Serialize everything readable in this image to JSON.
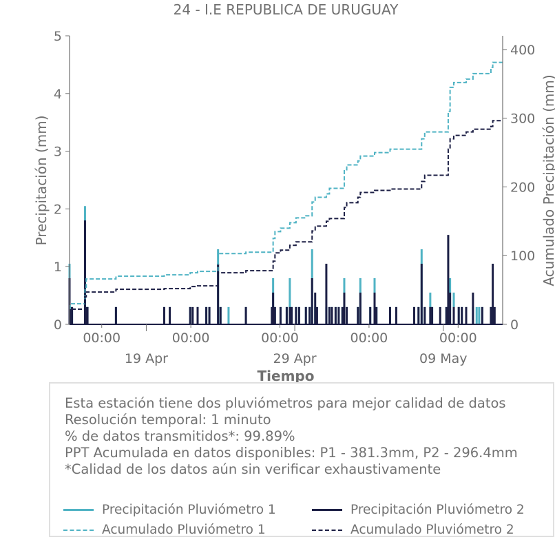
{
  "chart_data": {
    "type": "bar",
    "title": "24 - I.E REPUBLICA DE URUGUAY",
    "xlabel": "Tiempo",
    "ylabel": "Precipitación (mm)",
    "ylabel_right": "Acumulado Precipitación (mm)",
    "ylim": [
      0,
      5
    ],
    "ylim_right": [
      0,
      420
    ],
    "xlim": [
      "2025-04-13T20:00",
      "2025-05-13T00:00"
    ],
    "yticks": [
      "0",
      "1",
      "2",
      "3",
      "4",
      "5"
    ],
    "yticks_right": [
      "0",
      "100",
      "200",
      "300",
      "400"
    ],
    "xticks": [
      {
        "t": "2025-04-16T00:00",
        "label": "00:00"
      },
      {
        "t": "2025-04-22T00:00",
        "label": "00:00"
      },
      {
        "t": "2025-04-28T00:00",
        "label": "00:00"
      },
      {
        "t": "2025-05-04T00:00",
        "label": "00:00"
      },
      {
        "t": "2025-05-10T00:00",
        "label": "00:00"
      }
    ],
    "xticks_major": [
      {
        "t": "2025-04-19T00:00",
        "label": "19 Apr"
      },
      {
        "t": "2025-04-29T00:00",
        "label": "29 Apr"
      },
      {
        "t": "2025-05-09T00:00",
        "label": "09 May"
      }
    ],
    "grid": false,
    "colors": {
      "p1": "#4fb3c4",
      "p2": "#1c1f45",
      "axis": "#707070"
    },
    "series": [
      {
        "name": "Precipitación Pluviómetro 1",
        "kind": "bar",
        "points": [
          [
            "2025-04-13T20:00",
            1.05
          ],
          [
            "2025-04-13T21:00",
            0.3
          ],
          [
            "2025-04-14T00:00",
            0.3
          ],
          [
            "2025-04-14T21:00",
            2.05
          ],
          [
            "2025-04-14T22:00",
            0.3
          ],
          [
            "2025-04-15T01:00",
            0.3
          ],
          [
            "2025-04-16T23:00",
            0.3
          ],
          [
            "2025-04-20T05:00",
            0.3
          ],
          [
            "2025-04-20T14:00",
            0.3
          ],
          [
            "2025-04-21T23:00",
            0.3
          ],
          [
            "2025-04-22T11:00",
            0.3
          ],
          [
            "2025-04-23T01:00",
            0.3
          ],
          [
            "2025-04-23T06:00",
            0.3
          ],
          [
            "2025-04-23T20:00",
            1.3
          ],
          [
            "2025-04-24T00:00",
            0.3
          ],
          [
            "2025-04-24T13:00",
            0.3
          ],
          [
            "2025-04-25T17:00",
            0.3
          ],
          [
            "2025-04-27T11:00",
            0.3
          ],
          [
            "2025-04-27T13:00",
            0.8
          ],
          [
            "2025-04-27T16:00",
            0.3
          ],
          [
            "2025-04-28T01:00",
            0.3
          ],
          [
            "2025-04-28T11:00",
            0.3
          ],
          [
            "2025-04-28T16:00",
            0.8
          ],
          [
            "2025-04-28T19:00",
            0.3
          ],
          [
            "2025-04-29T02:00",
            0.3
          ],
          [
            "2025-04-29T07:00",
            0.3
          ],
          [
            "2025-04-29T18:00",
            0.3
          ],
          [
            "2025-04-30T00:00",
            0.3
          ],
          [
            "2025-04-30T04:00",
            1.3
          ],
          [
            "2025-04-30T09:00",
            0.3
          ],
          [
            "2025-05-01T03:00",
            0.3
          ],
          [
            "2025-05-01T08:00",
            0.3
          ],
          [
            "2025-05-01T12:00",
            0.3
          ],
          [
            "2025-05-01T18:00",
            0.3
          ],
          [
            "2025-05-01T23:00",
            0.3
          ],
          [
            "2025-05-02T05:00",
            0.3
          ],
          [
            "2025-05-02T08:00",
            0.8
          ],
          [
            "2025-05-02T12:00",
            0.3
          ],
          [
            "2025-05-03T06:00",
            0.3
          ],
          [
            "2025-05-03T10:00",
            0.8
          ],
          [
            "2025-05-04T02:00",
            0.3
          ],
          [
            "2025-05-04T09:00",
            0.8
          ],
          [
            "2025-05-04T12:00",
            0.3
          ],
          [
            "2025-05-05T10:00",
            0.3
          ],
          [
            "2025-05-05T20:00",
            0.3
          ],
          [
            "2025-05-07T01:00",
            0.3
          ],
          [
            "2025-05-07T08:00",
            0.3
          ],
          [
            "2025-05-07T13:00",
            1.3
          ],
          [
            "2025-05-07T18:00",
            0.3
          ],
          [
            "2025-05-08T03:00",
            0.55
          ],
          [
            "2025-05-08T06:00",
            0.3
          ],
          [
            "2025-05-09T05:00",
            0.3
          ],
          [
            "2025-05-09T11:00",
            0.8
          ],
          [
            "2025-05-09T17:00",
            0.55
          ],
          [
            "2025-05-10T01:00",
            0.3
          ],
          [
            "2025-05-10T06:00",
            0.3
          ],
          [
            "2025-05-10T13:00",
            0.3
          ],
          [
            "2025-05-11T00:00",
            0.3
          ],
          [
            "2025-05-11T06:00",
            0.3
          ],
          [
            "2025-05-11T10:00",
            0.3
          ],
          [
            "2025-05-11T15:00",
            0.3
          ],
          [
            "2025-05-12T05:00",
            0.3
          ]
        ]
      },
      {
        "name": "Precipitación Pluviómetro 2",
        "kind": "bar",
        "points": [
          [
            "2025-04-13T20:00",
            0.8
          ],
          [
            "2025-04-13T21:00",
            0.3
          ],
          [
            "2025-04-14T00:00",
            0.3
          ],
          [
            "2025-04-14T21:00",
            1.8
          ],
          [
            "2025-04-14T23:00",
            0.3
          ],
          [
            "2025-04-15T01:00",
            0.3
          ],
          [
            "2025-04-16T23:00",
            0.3
          ],
          [
            "2025-04-20T05:00",
            0.3
          ],
          [
            "2025-04-20T14:00",
            0.3
          ],
          [
            "2025-04-21T23:00",
            0.3
          ],
          [
            "2025-04-22T03:00",
            0.3
          ],
          [
            "2025-04-22T11:00",
            0.3
          ],
          [
            "2025-04-23T01:00",
            0.3
          ],
          [
            "2025-04-23T06:00",
            0.3
          ],
          [
            "2025-04-23T20:00",
            1.05
          ],
          [
            "2025-04-24T00:00",
            0.3
          ],
          [
            "2025-04-25T17:00",
            0.3
          ],
          [
            "2025-04-27T11:00",
            0.3
          ],
          [
            "2025-04-27T13:00",
            0.55
          ],
          [
            "2025-04-27T16:00",
            0.3
          ],
          [
            "2025-04-28T01:00",
            0.3
          ],
          [
            "2025-04-28T11:00",
            0.3
          ],
          [
            "2025-04-28T16:00",
            0.3
          ],
          [
            "2025-04-28T19:00",
            0.3
          ],
          [
            "2025-04-29T02:00",
            0.3
          ],
          [
            "2025-04-29T07:00",
            0.3
          ],
          [
            "2025-04-29T18:00",
            0.3
          ],
          [
            "2025-04-30T00:00",
            0.3
          ],
          [
            "2025-04-30T04:00",
            0.8
          ],
          [
            "2025-04-30T09:00",
            0.55
          ],
          [
            "2025-04-30T12:00",
            0.3
          ],
          [
            "2025-05-01T03:00",
            1.05
          ],
          [
            "2025-05-01T08:00",
            0.3
          ],
          [
            "2025-05-01T12:00",
            0.3
          ],
          [
            "2025-05-01T18:00",
            0.3
          ],
          [
            "2025-05-01T23:00",
            0.3
          ],
          [
            "2025-05-02T05:00",
            0.3
          ],
          [
            "2025-05-02T08:00",
            0.55
          ],
          [
            "2025-05-02T12:00",
            0.3
          ],
          [
            "2025-05-03T06:00",
            0.3
          ],
          [
            "2025-05-03T10:00",
            0.55
          ],
          [
            "2025-05-04T02:00",
            0.3
          ],
          [
            "2025-05-04T09:00",
            0.55
          ],
          [
            "2025-05-04T12:00",
            0.3
          ],
          [
            "2025-05-05T10:00",
            0.3
          ],
          [
            "2025-05-05T20:00",
            0.3
          ],
          [
            "2025-05-07T01:00",
            0.3
          ],
          [
            "2025-05-07T08:00",
            0.3
          ],
          [
            "2025-05-07T13:00",
            1.05
          ],
          [
            "2025-05-07T18:00",
            0.3
          ],
          [
            "2025-05-08T03:00",
            0.3
          ],
          [
            "2025-05-08T06:00",
            0.3
          ],
          [
            "2025-05-08T19:00",
            0.3
          ],
          [
            "2025-05-09T05:00",
            0.3
          ],
          [
            "2025-05-09T08:00",
            1.55
          ],
          [
            "2025-05-09T11:00",
            0.55
          ],
          [
            "2025-05-09T17:00",
            0.3
          ],
          [
            "2025-05-10T01:00",
            0.3
          ],
          [
            "2025-05-10T06:00",
            0.3
          ],
          [
            "2025-05-10T13:00",
            0.3
          ],
          [
            "2025-05-11T00:00",
            0.55
          ],
          [
            "2025-05-11T15:00",
            0.3
          ],
          [
            "2025-05-12T05:00",
            0.3
          ],
          [
            "2025-05-12T08:00",
            1.05
          ],
          [
            "2025-05-12T11:00",
            0.3
          ]
        ]
      },
      {
        "name": "Acumulado Pluviómetro 1",
        "kind": "step",
        "points": [
          [
            "2025-04-13T20:00",
            23
          ],
          [
            "2025-04-13T21:00",
            30
          ],
          [
            "2025-04-14T21:00",
            54
          ],
          [
            "2025-04-14T23:00",
            66
          ],
          [
            "2025-04-16T23:00",
            70
          ],
          [
            "2025-04-20T05:00",
            72
          ],
          [
            "2025-04-21T23:00",
            75
          ],
          [
            "2025-04-22T11:00",
            77
          ],
          [
            "2025-04-23T20:00",
            103
          ],
          [
            "2025-04-25T17:00",
            105
          ],
          [
            "2025-04-27T13:00",
            125
          ],
          [
            "2025-04-27T16:00",
            135
          ],
          [
            "2025-04-28T01:00",
            140
          ],
          [
            "2025-04-28T16:00",
            148
          ],
          [
            "2025-04-29T02:00",
            155
          ],
          [
            "2025-04-29T18:00",
            158
          ],
          [
            "2025-04-30T04:00",
            178
          ],
          [
            "2025-04-30T09:00",
            185
          ],
          [
            "2025-05-01T03:00",
            190
          ],
          [
            "2025-05-01T08:00",
            198
          ],
          [
            "2025-05-02T08:00",
            225
          ],
          [
            "2025-05-02T12:00",
            232
          ],
          [
            "2025-05-03T06:00",
            238
          ],
          [
            "2025-05-03T10:00",
            245
          ],
          [
            "2025-05-04T09:00",
            250
          ],
          [
            "2025-05-05T10:00",
            255
          ],
          [
            "2025-05-07T13:00",
            270
          ],
          [
            "2025-05-07T18:00",
            280
          ],
          [
            "2025-05-09T08:00",
            310
          ],
          [
            "2025-05-09T11:00",
            345
          ],
          [
            "2025-05-09T17:00",
            352
          ],
          [
            "2025-05-10T13:00",
            357
          ],
          [
            "2025-05-11T00:00",
            365
          ],
          [
            "2025-05-12T05:00",
            374
          ],
          [
            "2025-05-12T08:00",
            381.3
          ],
          [
            "2025-05-13T00:00",
            381.3
          ]
        ]
      },
      {
        "name": "Acumulado Pluviómetro 2",
        "kind": "step",
        "points": [
          [
            "2025-04-13T20:00",
            16
          ],
          [
            "2025-04-13T21:00",
            22
          ],
          [
            "2025-04-14T21:00",
            40
          ],
          [
            "2025-04-14T23:00",
            47
          ],
          [
            "2025-04-16T23:00",
            51
          ],
          [
            "2025-04-20T05:00",
            52
          ],
          [
            "2025-04-21T23:00",
            55
          ],
          [
            "2025-04-22T11:00",
            56
          ],
          [
            "2025-04-23T20:00",
            75
          ],
          [
            "2025-04-25T17:00",
            78
          ],
          [
            "2025-04-27T13:00",
            92
          ],
          [
            "2025-04-27T16:00",
            104
          ],
          [
            "2025-04-28T01:00",
            108
          ],
          [
            "2025-04-28T16:00",
            115
          ],
          [
            "2025-04-29T02:00",
            120
          ],
          [
            "2025-04-30T04:00",
            136
          ],
          [
            "2025-04-30T09:00",
            143
          ],
          [
            "2025-05-01T03:00",
            150
          ],
          [
            "2025-05-01T08:00",
            154
          ],
          [
            "2025-05-02T08:00",
            170
          ],
          [
            "2025-05-02T12:00",
            177
          ],
          [
            "2025-05-03T06:00",
            185
          ],
          [
            "2025-05-03T10:00",
            192
          ],
          [
            "2025-05-04T09:00",
            195
          ],
          [
            "2025-05-05T10:00",
            197
          ],
          [
            "2025-05-07T13:00",
            208
          ],
          [
            "2025-05-07T18:00",
            217
          ],
          [
            "2025-05-09T08:00",
            255
          ],
          [
            "2025-05-09T11:00",
            270
          ],
          [
            "2025-05-09T17:00",
            275
          ],
          [
            "2025-05-10T13:00",
            280
          ],
          [
            "2025-05-11T00:00",
            284
          ],
          [
            "2025-05-12T05:00",
            288
          ],
          [
            "2025-05-12T08:00",
            296.4
          ],
          [
            "2025-05-13T00:00",
            296.4
          ]
        ]
      }
    ]
  },
  "info": {
    "lines": [
      "Esta estación tiene dos pluviómetros para mejor calidad de datos",
      "Resolución temporal: 1 minuto",
      "% de datos transmitidos*: 99.89%",
      "PPT Acumulada en datos disponibles: P1 - 381.3mm, P2 - 296.4mm",
      "*Calidad de los datos aún sin verificar exhaustivamente"
    ]
  },
  "legend": {
    "p1_label": "Precipitación Pluviómetro 1",
    "p2_label": "Precipitación Pluviómetro 2",
    "acc1_label": "Acumulado Pluviómetro 1",
    "acc2_label": "Acumulado Pluviómetro 2"
  }
}
